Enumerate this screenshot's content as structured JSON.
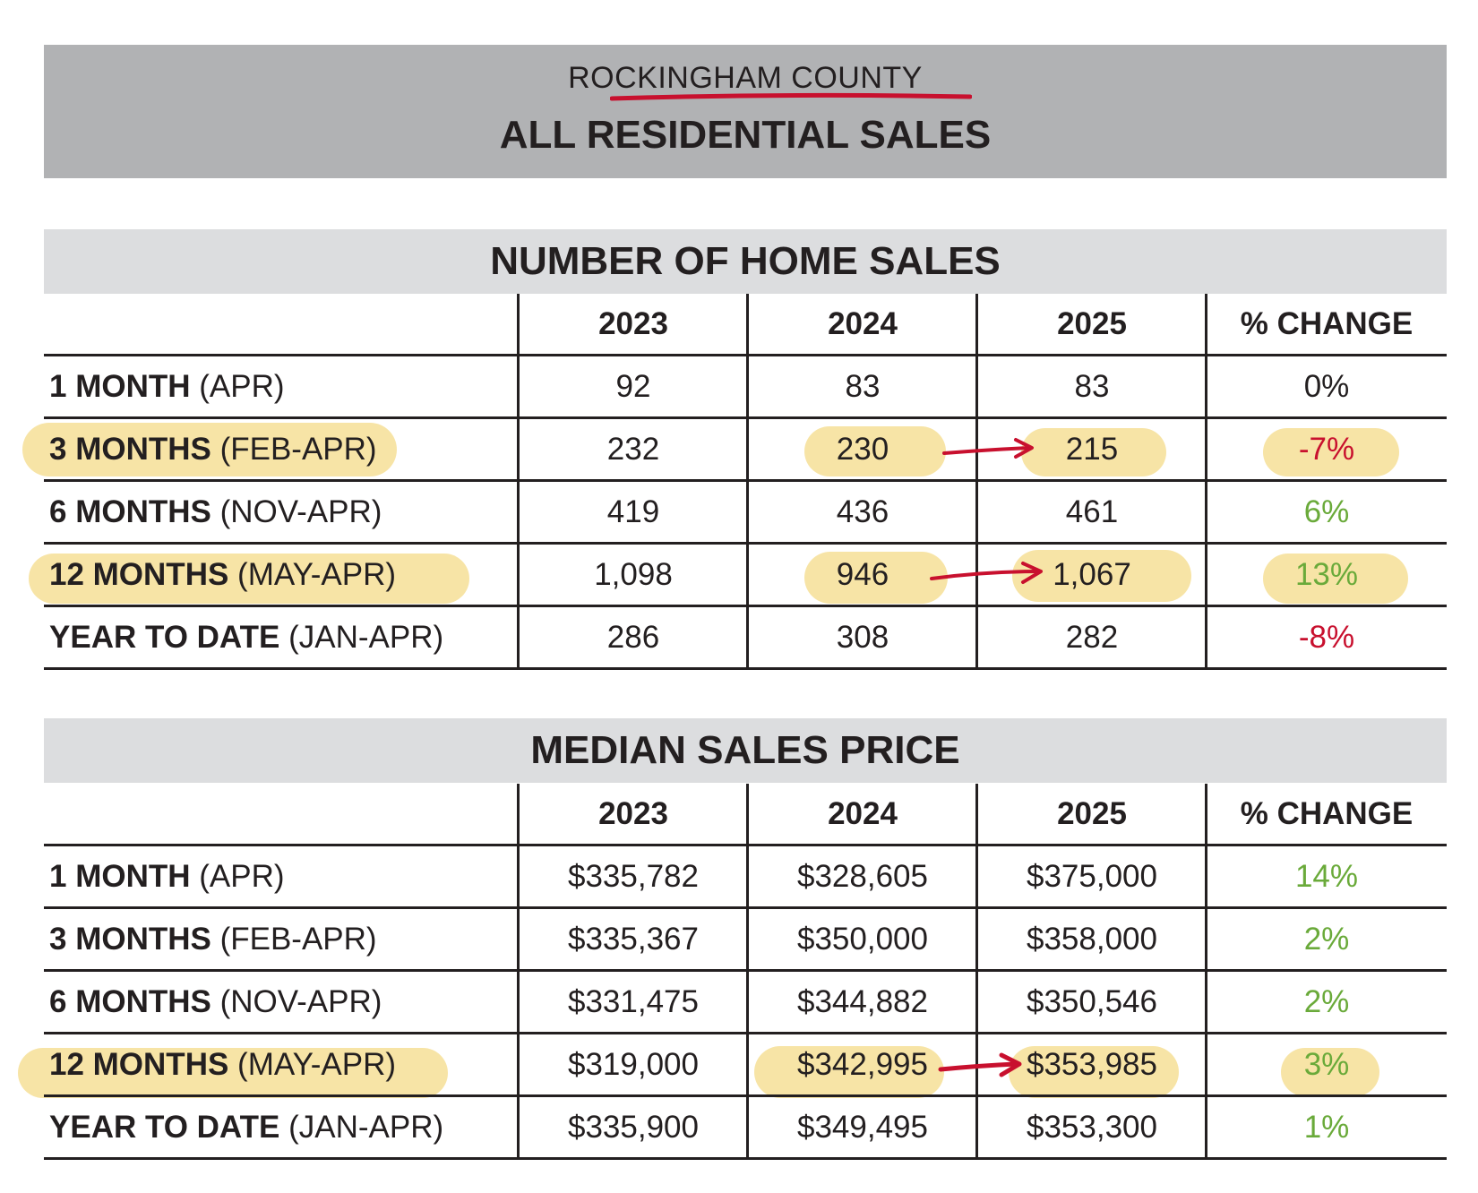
{
  "header": {
    "county": "ROCKINGHAM COUNTY",
    "title": "ALL RESIDENTIAL SALES"
  },
  "sales": {
    "title": "NUMBER OF HOME SALES",
    "columns": [
      "2023",
      "2024",
      "2025",
      "% CHANGE"
    ],
    "rows": [
      {
        "label_bold": "1 MONTH",
        "label_rest": " (APR)",
        "v2023": "92",
        "v2024": "83",
        "v2025": "83",
        "change": "0%"
      },
      {
        "label_bold": "3 MONTHS",
        "label_rest": " (FEB-APR)",
        "v2023": "232",
        "v2024": "230",
        "v2025": "215",
        "change": "-7%"
      },
      {
        "label_bold": "6 MONTHS",
        "label_rest": " (NOV-APR)",
        "v2023": "419",
        "v2024": "436",
        "v2025": "461",
        "change": "6%"
      },
      {
        "label_bold": "12 MONTHS",
        "label_rest": " (MAY-APR)",
        "v2023": "1,098",
        "v2024": "946",
        "v2025": "1,067",
        "change": "13%"
      },
      {
        "label_bold": "YEAR TO DATE",
        "label_rest": " (JAN-APR)",
        "v2023": "286",
        "v2024": "308",
        "v2025": "282",
        "change": "-8%"
      }
    ]
  },
  "price": {
    "title": "MEDIAN SALES PRICE",
    "columns": [
      "2023",
      "2024",
      "2025",
      "% CHANGE"
    ],
    "rows": [
      {
        "label_bold": "1 MONTH",
        "label_rest": " (APR)",
        "v2023": "$335,782",
        "v2024": "$328,605",
        "v2025": "$375,000",
        "change": "14%"
      },
      {
        "label_bold": "3 MONTHS",
        "label_rest": " (FEB-APR)",
        "v2023": "$335,367",
        "v2024": "$350,000",
        "v2025": "$358,000",
        "change": "2%"
      },
      {
        "label_bold": "6 MONTHS",
        "label_rest": " (NOV-APR)",
        "v2023": "$331,475",
        "v2024": "$344,882",
        "v2025": "$350,546",
        "change": "2%"
      },
      {
        "label_bold": "12 MONTHS",
        "label_rest": " (MAY-APR)",
        "v2023": "$319,000",
        "v2024": "$342,995",
        "v2025": "$353,985",
        "change": "3%"
      },
      {
        "label_bold": "YEAR TO DATE",
        "label_rest": " (JAN-APR)",
        "v2023": "$335,900",
        "v2024": "$349,495",
        "v2025": "$353,300",
        "change": "1%"
      }
    ]
  },
  "colors": {
    "negative": "#c8102e",
    "positive": "#6aaa3a",
    "highlight": "#f7e3a1",
    "header_gray": "#b1b2b4",
    "section_gray": "#dcdddf"
  }
}
